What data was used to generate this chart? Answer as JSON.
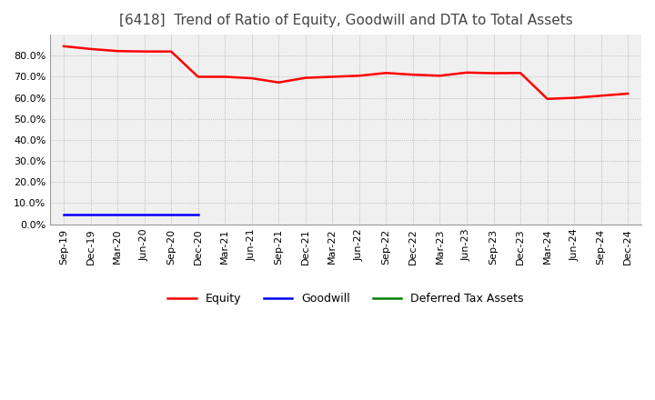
{
  "title": "[6418]  Trend of Ratio of Equity, Goodwill and DTA to Total Assets",
  "x_labels": [
    "Sep-19",
    "Dec-19",
    "Mar-20",
    "Jun-20",
    "Sep-20",
    "Dec-20",
    "Mar-21",
    "Jun-21",
    "Sep-21",
    "Dec-21",
    "Mar-22",
    "Jun-22",
    "Sep-22",
    "Dec-22",
    "Mar-23",
    "Jun-23",
    "Sep-23",
    "Dec-23",
    "Mar-24",
    "Jun-24",
    "Sep-24",
    "Dec-24"
  ],
  "equity": [
    0.845,
    0.832,
    0.822,
    0.82,
    0.82,
    0.7,
    0.7,
    0.693,
    0.673,
    0.695,
    0.7,
    0.705,
    0.718,
    0.71,
    0.705,
    0.72,
    0.717,
    0.718,
    0.595,
    0.6,
    0.61,
    0.62
  ],
  "goodwill": [
    0.048,
    0.048,
    0.048,
    0.048,
    0.048,
    0.048,
    null,
    null,
    null,
    null,
    null,
    null,
    null,
    null,
    null,
    null,
    null,
    null,
    null,
    null,
    null,
    null
  ],
  "dta": [
    null,
    null,
    null,
    null,
    null,
    null,
    null,
    null,
    null,
    null,
    null,
    null,
    null,
    null,
    null,
    null,
    null,
    null,
    null,
    null,
    null,
    null
  ],
  "equity_color": "#ff0000",
  "goodwill_color": "#0000ff",
  "dta_color": "#008000",
  "ylim": [
    0.0,
    0.9
  ],
  "yticks": [
    0.0,
    0.1,
    0.2,
    0.3,
    0.4,
    0.5,
    0.6,
    0.7,
    0.8
  ],
  "plot_bg_color": "#f0f0f0",
  "background_color": "#ffffff",
  "grid_color": "#aaaaaa",
  "title_fontsize": 11,
  "tick_fontsize": 8,
  "legend_fontsize": 9
}
